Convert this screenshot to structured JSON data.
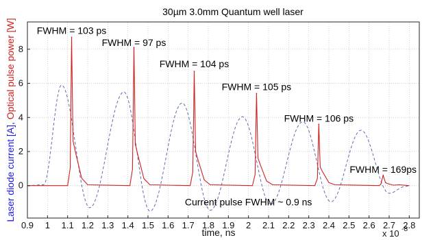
{
  "chart_data": {
    "type": "line",
    "title": "30µm 3.0mm Quantum well laser",
    "xlabel": "time, ns",
    "ylabel": {
      "blue_part": "Laser diode current [A], ",
      "red_part": "Optical pulse power [W]",
      "blue_color": "#1a1ae6",
      "red_color": "#d02020"
    },
    "x_multiplier_label": "x 10",
    "x_multiplier_exponent": "-8",
    "xlim": [
      0.9,
      2.85
    ],
    "ylim": [
      -1.9,
      9.6
    ],
    "x_ticks": [
      0.9,
      1.0,
      1.1,
      1.2,
      1.3,
      1.4,
      1.5,
      1.6,
      1.7,
      1.8,
      1.9,
      2.0,
      2.1,
      2.2,
      2.3,
      2.4,
      2.5,
      2.6,
      2.7,
      2.8
    ],
    "x_tick_labels": [
      "0.9",
      "1",
      "1.1",
      "1.2",
      "1.3",
      "1.4",
      "1.5",
      "1.6",
      "1.7",
      "1.8",
      "1.9",
      "2",
      "2.1",
      "2.2",
      "2.3",
      "2.4",
      "2.5",
      "2.6",
      "2.7",
      "2.8"
    ],
    "y_ticks": [
      0,
      2,
      4,
      6,
      8
    ],
    "y_tick_labels": [
      "0",
      "2",
      "4",
      "6",
      "8"
    ],
    "grid": true,
    "series": [
      {
        "color": "#5a6bb0",
        "style": "dashed",
        "peaks": [
          {
            "x": 1.07,
            "y": 5.9
          },
          {
            "x": 1.38,
            "y": 5.5
          },
          {
            "x": 1.67,
            "y": 4.85
          },
          {
            "x": 1.97,
            "y": 4.05
          },
          {
            "x": 2.27,
            "y": 3.75
          },
          {
            "x": 2.56,
            "y": 3.25
          }
        ],
        "troughs": [
          {
            "x": 1.21,
            "y": -1.3
          },
          {
            "x": 1.51,
            "y": -1.5
          },
          {
            "x": 1.81,
            "y": -1.45
          },
          {
            "x": 2.11,
            "y": -1.1
          },
          {
            "x": 2.41,
            "y": -0.95
          },
          {
            "x": 2.7,
            "y": -0.45
          }
        ]
      },
      {
        "color": "#d02020",
        "style": "solid",
        "pulses": [
          {
            "x": 1.12,
            "y": 8.7
          },
          {
            "x": 1.43,
            "y": 8.1
          },
          {
            "x": 1.73,
            "y": 6.7
          },
          {
            "x": 2.04,
            "y": 5.4
          },
          {
            "x": 2.35,
            "y": 3.6
          },
          {
            "x": 2.67,
            "y": 0.6
          }
        ]
      }
    ],
    "annotations": [
      {
        "text": "FWHM = 103 ps",
        "x": 1.12,
        "y": 8.9
      },
      {
        "text": "FWHM = 97 ps",
        "x": 1.43,
        "y": 8.2
      },
      {
        "text": "FWHM = 104 ps",
        "x": 1.73,
        "y": 6.95
      },
      {
        "text": "FWHM = 105 ps",
        "x": 2.04,
        "y": 5.6
      },
      {
        "text": "FWHM = 106 ps",
        "x": 2.35,
        "y": 3.75
      },
      {
        "text": "FWHM = 169ps",
        "x": 2.67,
        "y": 0.75
      },
      {
        "text": "Current pulse FWHM ~ 0.9 ns",
        "x": 2.0,
        "y": -1.15
      }
    ]
  }
}
